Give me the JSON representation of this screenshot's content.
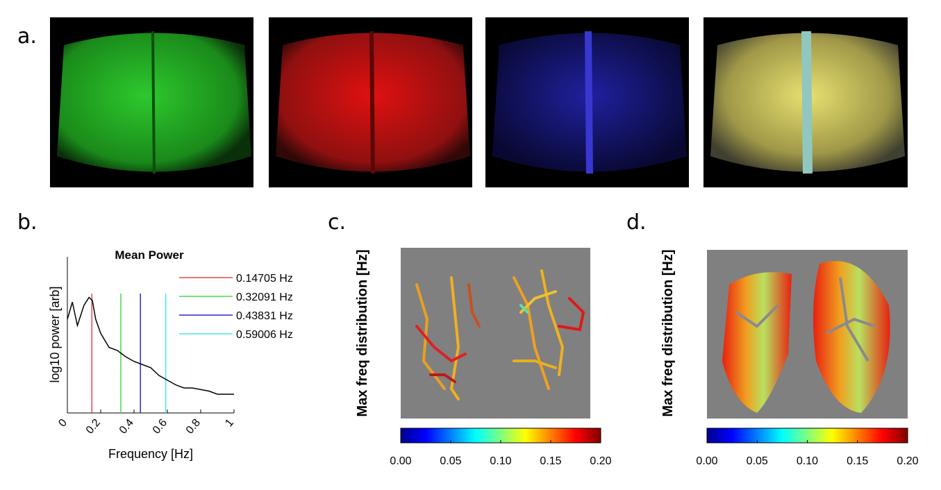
{
  "panel_labels": [
    "a.",
    "b.",
    "c.",
    "d."
  ],
  "chart_data": {
    "type": "line",
    "title": "Mean Power",
    "xlabel": "Frequency [Hz]",
    "ylabel": "log10 power [arb]",
    "x": [
      0,
      0.03,
      0.06,
      0.1,
      0.13,
      0.15,
      0.17,
      0.2,
      0.25,
      0.3,
      0.35,
      0.4,
      0.45,
      0.5,
      0.55,
      0.6,
      0.65,
      0.7,
      0.75,
      0.8,
      0.85,
      0.9,
      0.95,
      1.0
    ],
    "series": [
      {
        "color": "#000000",
        "values": [
          0.6,
          0.71,
          0.56,
          0.69,
          0.74,
          0.72,
          0.6,
          0.51,
          0.42,
          0.4,
          0.36,
          0.33,
          0.31,
          0.29,
          0.24,
          0.21,
          0.18,
          0.16,
          0.16,
          0.15,
          0.14,
          0.12,
          0.12,
          0.12
        ]
      }
    ],
    "vlines": [
      {
        "name": "0.14705 Hz",
        "x": 0.14705,
        "color": "#e04848"
      },
      {
        "name": "0.32091 Hz",
        "x": 0.32091,
        "color": "#48d848"
      },
      {
        "name": "0.43831 Hz",
        "x": 0.43831,
        "color": "#2828c8"
      },
      {
        "name": "0.59006 Hz",
        "x": 0.59006,
        "color": "#40e8e8"
      }
    ],
    "xlim": [
      0,
      1
    ],
    "ylim": [
      0,
      1
    ],
    "xticks": [
      0,
      0.2,
      0.4,
      0.6,
      0.8,
      1
    ]
  },
  "colorbars": [
    {
      "ylabel": "Max freq distribution  [Hz]",
      "clim": [
        0,
        0.2
      ],
      "ticks": [
        {
          "value": 0,
          "label": "0.00"
        },
        {
          "value": 0.05,
          "label": "0.05"
        },
        {
          "value": 0.1,
          "label": "0.10"
        },
        {
          "value": 0.15,
          "label": "0.15"
        },
        {
          "value": 0.2,
          "label": "0.20"
        }
      ]
    },
    {
      "ylabel": "Max freq distribution  [Hz]",
      "clim": [
        0,
        0.2
      ],
      "ticks": [
        {
          "value": 0,
          "label": "0.00"
        },
        {
          "value": 0.05,
          "label": "0.05"
        },
        {
          "value": 0.1,
          "label": "0.10"
        },
        {
          "value": 0.15,
          "label": "0.15"
        },
        {
          "value": 0.2,
          "label": "0.20"
        }
      ]
    }
  ]
}
